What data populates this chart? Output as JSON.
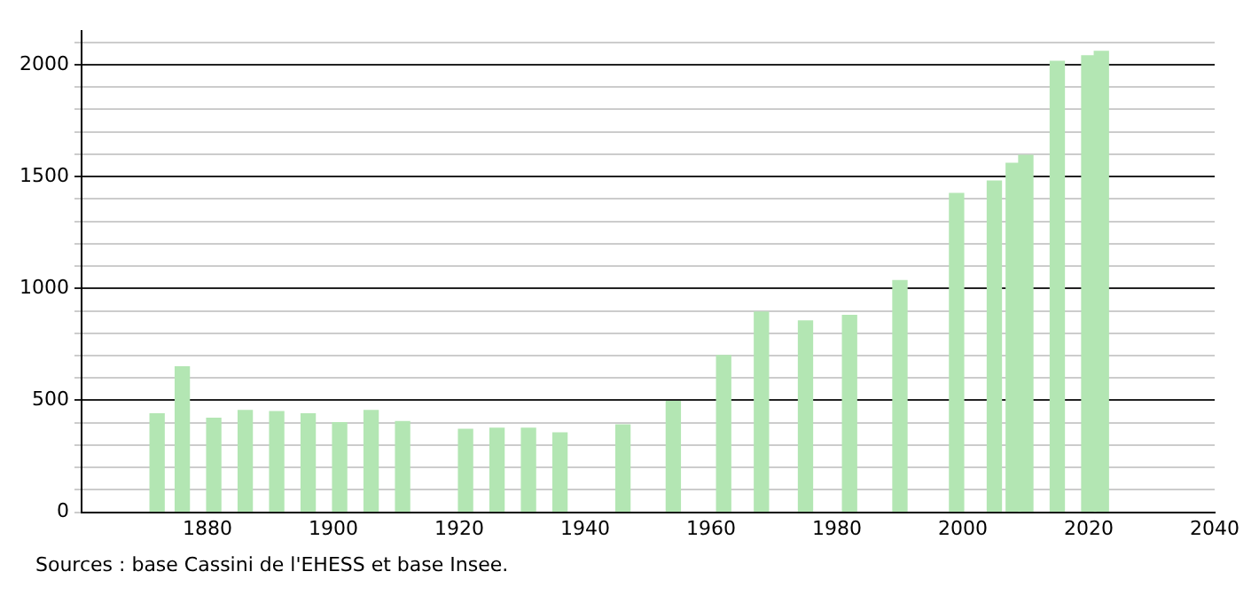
{
  "chart_data": {
    "type": "bar",
    "x": [
      1872,
      1876,
      1881,
      1886,
      1891,
      1896,
      1901,
      1906,
      1911,
      1921,
      1926,
      1931,
      1936,
      1946,
      1954,
      1962,
      1968,
      1975,
      1982,
      1990,
      1999,
      2005,
      2008,
      2010,
      2015,
      2020,
      2022
    ],
    "values": [
      440,
      650,
      420,
      455,
      450,
      440,
      400,
      455,
      405,
      370,
      375,
      375,
      355,
      390,
      495,
      700,
      895,
      855,
      880,
      1035,
      1425,
      1480,
      1560,
      1595,
      2015,
      2040,
      2060
    ],
    "color": "#b3e6b3",
    "xlim": [
      1860,
      2040
    ],
    "xticks": [
      1880,
      1900,
      1920,
      1940,
      1960,
      1980,
      2000,
      2020,
      2040
    ],
    "ylim": [
      0,
      2150
    ],
    "yticks": [
      0,
      {
        "value": 100,
        "label": null
      },
      {
        "value": 200,
        "label": null
      },
      {
        "value": 300,
        "label": null
      },
      {
        "value": 400,
        "label": null
      },
      500,
      {
        "value": 600,
        "label": null
      },
      {
        "value": 700,
        "label": null
      },
      {
        "value": 800,
        "label": null
      },
      {
        "value": 900,
        "label": null
      },
      1000,
      {
        "value": 1100,
        "label": null
      },
      {
        "value": 1200,
        "label": null
      },
      {
        "value": 1300,
        "label": null
      },
      {
        "value": 1400,
        "label": null
      },
      1500,
      {
        "value": 1600,
        "label": null
      },
      {
        "value": 1700,
        "label": null
      },
      {
        "value": 1800,
        "label": null
      },
      {
        "value": 1900,
        "label": null
      },
      2000,
      {
        "value": 2100,
        "label": null
      }
    ],
    "grid": "y",
    "annotations": [
      "Sources : base Cassini de l'EHESS et base Insee."
    ]
  }
}
